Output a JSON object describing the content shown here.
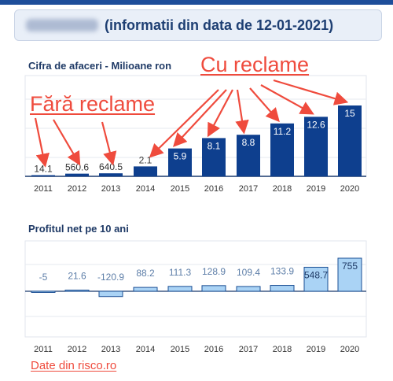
{
  "header": {
    "text": "(informatii din data de 12-01-2021)"
  },
  "annotations": {
    "with_ads": "Cu reclame",
    "without_ads": "Fără reclame"
  },
  "source": "Date din risco.ro",
  "colors": {
    "revenue_bar": "#0e3f8e",
    "profit_bar": "#aad3f5",
    "profit_bar_border": "#1b4f94",
    "arrow": "#ef4b3d",
    "header_text": "#1e3f73"
  },
  "chart_data": [
    {
      "type": "bar",
      "title": "Cifra de afaceri - Milioane ron",
      "categories": [
        "2011",
        "2012",
        "2013",
        "2014",
        "2015",
        "2016",
        "2017",
        "2018",
        "2019",
        "2020"
      ],
      "values": [
        0.0141,
        0.5606,
        0.6405,
        2.1,
        5.9,
        8.1,
        8.8,
        11.2,
        12.6,
        15
      ],
      "labels": [
        "14.1",
        "560.6",
        "640.5",
        "2.1",
        "5.9",
        "8.1",
        "8.8",
        "11.2",
        "12.6",
        "15"
      ],
      "ylim": [
        0,
        15
      ],
      "grid": true,
      "annotated_without_ads": [
        "2011",
        "2012",
        "2013"
      ],
      "annotated_with_ads": [
        "2014",
        "2015",
        "2016",
        "2017",
        "2018",
        "2019",
        "2020"
      ]
    },
    {
      "type": "bar",
      "title": "Profitul net pe 10 ani",
      "categories": [
        "2011",
        "2012",
        "2013",
        "2014",
        "2015",
        "2016",
        "2017",
        "2018",
        "2019",
        "2020"
      ],
      "values": [
        -5,
        21.6,
        -120.9,
        88.2,
        111.3,
        128.9,
        109.4,
        133.9,
        548.7,
        755
      ],
      "labels": [
        "-5",
        "21.6",
        "-120.9",
        "88.2",
        "111.3",
        "128.9",
        "109.4",
        "133.9",
        "548.7",
        "755"
      ],
      "ylim": [
        -200,
        800
      ],
      "grid": true
    }
  ]
}
